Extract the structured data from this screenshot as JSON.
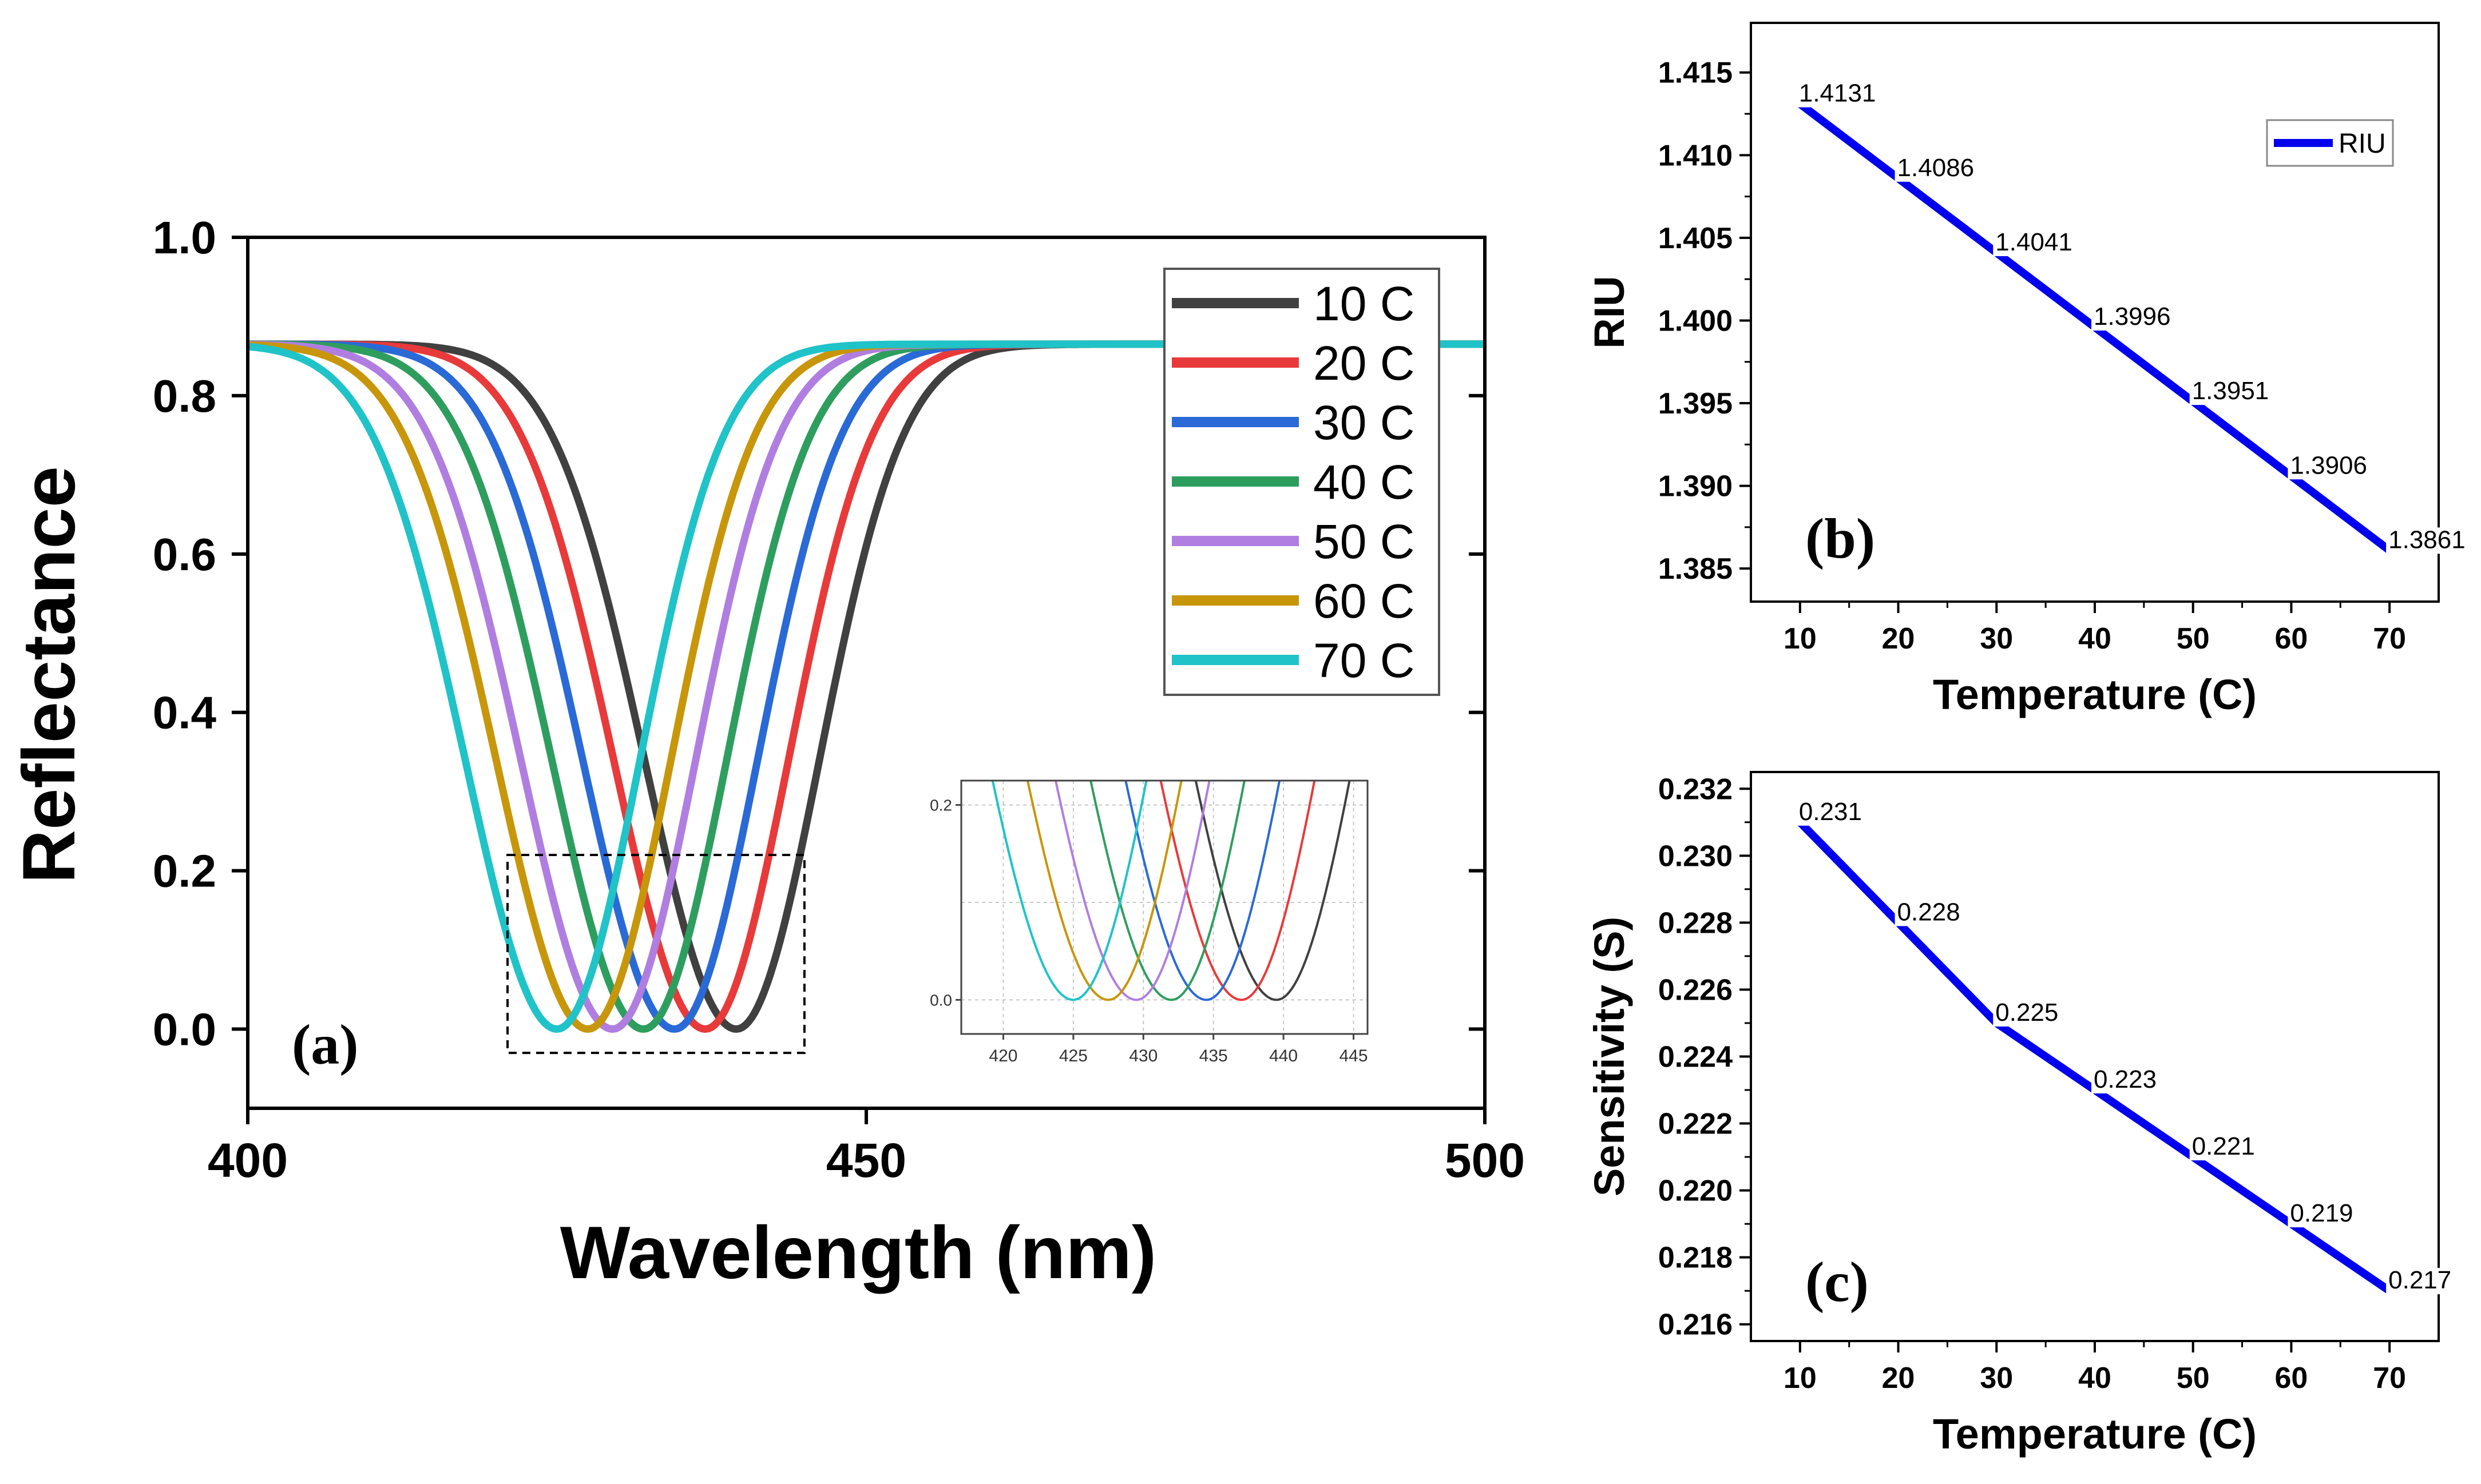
{
  "chart_data": [
    {
      "id": "a",
      "type": "line",
      "panel_label": "(a)",
      "xlabel": "Wavelength (nm)",
      "ylabel": "Reflectance",
      "xlim": [
        400,
        500
      ],
      "ylim": [
        -0.1,
        1.0
      ],
      "xticks": [
        400,
        450,
        500
      ],
      "yticks": [
        0.0,
        0.2,
        0.4,
        0.6,
        0.8,
        1.0
      ],
      "legend_position": "top-right",
      "model": "reflectance dip curves",
      "series": [
        {
          "name": "10 C",
          "color": "#404040",
          "min_wavelength": 439.5,
          "left_width": 10.5,
          "right_width": 9.5,
          "baseline": 0.865
        },
        {
          "name": "20 C",
          "color": "#e83a3a",
          "min_wavelength": 437.0,
          "left_width": 10.5,
          "right_width": 9.5,
          "baseline": 0.865
        },
        {
          "name": "30 C",
          "color": "#2a6ad6",
          "min_wavelength": 434.5,
          "left_width": 10.5,
          "right_width": 9.5,
          "baseline": 0.865
        },
        {
          "name": "40 C",
          "color": "#2e9e5e",
          "min_wavelength": 432.0,
          "left_width": 10.5,
          "right_width": 9.5,
          "baseline": 0.865
        },
        {
          "name": "50 C",
          "color": "#b07ee0",
          "min_wavelength": 429.5,
          "left_width": 10.5,
          "right_width": 9.5,
          "baseline": 0.865
        },
        {
          "name": "60 C",
          "color": "#c8960a",
          "min_wavelength": 427.5,
          "left_width": 10.5,
          "right_width": 9.5,
          "baseline": 0.865
        },
        {
          "name": "70 C",
          "color": "#1fc3c8",
          "min_wavelength": 425.0,
          "left_width": 10.5,
          "right_width": 9.5,
          "baseline": 0.865
        }
      ],
      "inset": {
        "xlim": [
          417,
          446
        ],
        "ylim": [
          -0.035,
          0.225
        ],
        "xticks": [
          420,
          425,
          430,
          435,
          440,
          445
        ],
        "yticks": [
          0.0,
          0.2
        ],
        "grid": true
      },
      "zoom_region": {
        "x": [
          421,
          445
        ],
        "y": [
          -0.03,
          0.22
        ]
      }
    },
    {
      "id": "b",
      "type": "line",
      "panel_label": "(b)",
      "xlabel": "Temperature (C)",
      "ylabel": "RIU",
      "xlim": [
        5,
        75
      ],
      "ylim": [
        1.383,
        1.418
      ],
      "xticks": [
        10,
        20,
        30,
        40,
        50,
        60,
        70
      ],
      "yticks": [
        1.385,
        1.39,
        1.395,
        1.4,
        1.405,
        1.41,
        1.415
      ],
      "ytick_labels": [
        "1.385",
        "1.390",
        "1.395",
        "1.400",
        "1.405",
        "1.410",
        "1.415"
      ],
      "legend": [
        "RIU"
      ],
      "legend_position": "top-right",
      "series": [
        {
          "name": "RIU",
          "color": "#0000ee",
          "x": [
            10,
            20,
            30,
            40,
            50,
            60,
            70
          ],
          "y": [
            1.4131,
            1.4086,
            1.4041,
            1.3996,
            1.3951,
            1.3906,
            1.3861
          ]
        }
      ],
      "data_labels": [
        "1.4131",
        "1.4086",
        "1.4041",
        "1.3996",
        "1.3951",
        "1.3906",
        "1.3861"
      ]
    },
    {
      "id": "c",
      "type": "line",
      "panel_label": "(c)",
      "xlabel": "Temperature (C)",
      "ylabel": "Sensitivity (S)",
      "xlim": [
        5,
        75
      ],
      "ylim": [
        0.2155,
        0.2325
      ],
      "xticks": [
        10,
        20,
        30,
        40,
        50,
        60,
        70
      ],
      "yticks": [
        0.216,
        0.218,
        0.22,
        0.222,
        0.224,
        0.226,
        0.228,
        0.23,
        0.232
      ],
      "ytick_labels": [
        "0.216",
        "0.218",
        "0.220",
        "0.222",
        "0.224",
        "0.226",
        "0.228",
        "0.230",
        "0.232"
      ],
      "series": [
        {
          "name": "Sensitivity",
          "color": "#0000ee",
          "x": [
            10,
            20,
            30,
            40,
            50,
            60,
            70
          ],
          "y": [
            0.231,
            0.228,
            0.225,
            0.223,
            0.221,
            0.219,
            0.217
          ]
        }
      ],
      "data_labels": [
        "0.231",
        "0.228",
        "0.225",
        "0.223",
        "0.221",
        "0.219",
        "0.217"
      ]
    }
  ]
}
